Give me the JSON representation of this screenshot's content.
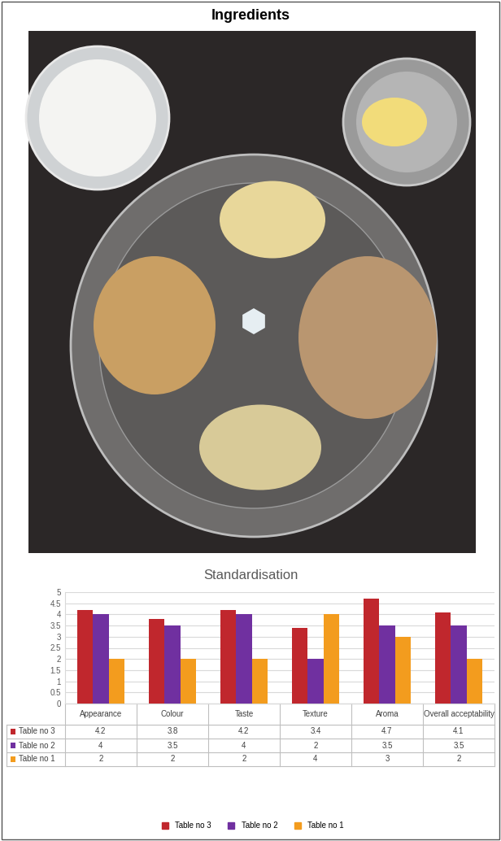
{
  "title": "Ingredients",
  "chart_data": {
    "type": "bar",
    "title": "Standardisation",
    "categories": [
      "Appearance",
      "Colour",
      "Taste",
      "Texture",
      "Aroma",
      "Overall acceptability"
    ],
    "series": [
      {
        "name": "Table no 3",
        "color": "#c0272d",
        "values": [
          4.2,
          3.8,
          4.2,
          3.4,
          4.7,
          4.1
        ]
      },
      {
        "name": "Table no 2",
        "color": "#7030a0",
        "values": [
          4,
          3.5,
          4,
          2,
          3.5,
          3.5
        ]
      },
      {
        "name": "Table no 1",
        "color": "#f39c1e",
        "values": [
          2,
          2,
          2,
          4,
          3,
          2
        ]
      }
    ],
    "ylim": [
      0,
      5
    ],
    "yticks": [
      0,
      0.5,
      1,
      1.5,
      2,
      2.5,
      3,
      3.5,
      4,
      4.5,
      5
    ],
    "grid": true,
    "legend": "bottom",
    "tick_labels": "y"
  }
}
